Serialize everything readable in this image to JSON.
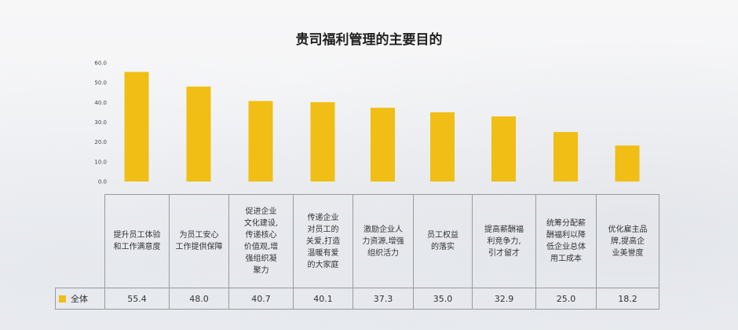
{
  "chart_data": {
    "type": "bar",
    "title": "贵司福利管理的主要目的",
    "categories": [
      "提升员工体验\n和工作满意度",
      "为员工安心\n工作提供保障",
      "促进企业\n文化建设,\n传递核心\n价值观,增\n强组织凝\n聚力",
      "传递企业\n对员工的\n关爱,打造\n温暖有爱\n的大家庭",
      "激励企业人\n力资源,增强\n组织活力",
      "员工权益\n的落实",
      "提高薪酬福\n利竞争力,\n引才留才",
      "统筹分配薪\n酬福利以降\n低企业总体\n用工成本",
      "优化雇主品\n牌,提高企\n业美誉度"
    ],
    "series": [
      {
        "name": "全体",
        "values": [
          55.4,
          48.0,
          40.7,
          40.1,
          37.3,
          35.0,
          32.9,
          25.0,
          18.2
        ],
        "value_labels": [
          "55.4",
          "48.0",
          "40.7",
          "40.1",
          "37.3",
          "35.0",
          "32.9",
          "25.0",
          "18.2"
        ]
      }
    ],
    "y_ticks": [
      "0.0",
      "10.0",
      "20.0",
      "30.0",
      "40.0",
      "50.0",
      "60.0"
    ],
    "ylim": [
      0,
      60
    ],
    "bar_color": "#F0BE14",
    "grid": false,
    "legend": "data-table"
  }
}
